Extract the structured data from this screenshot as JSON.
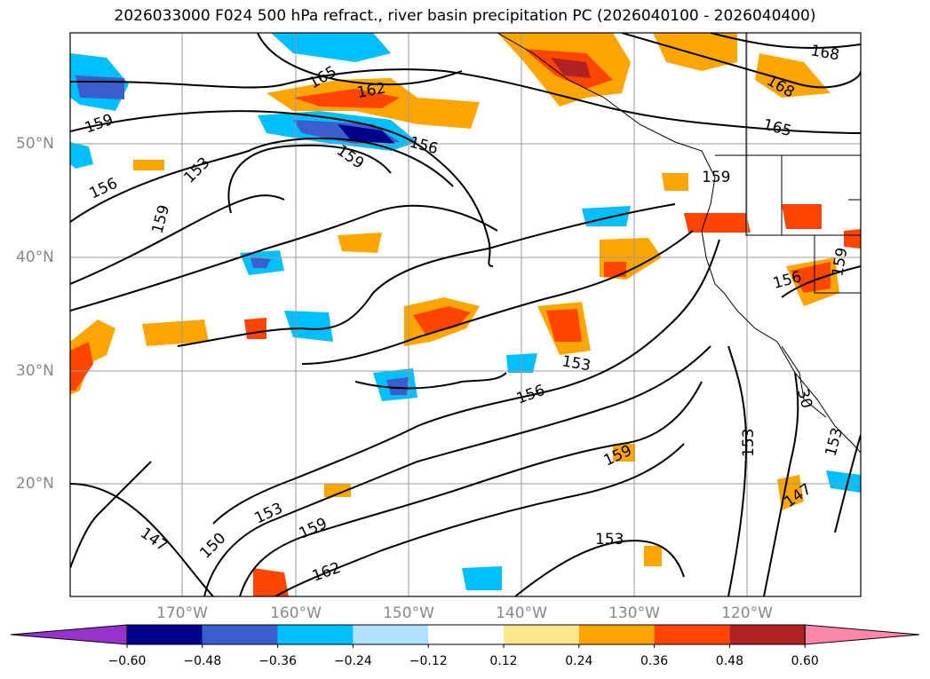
{
  "title": "2026033000 F024 500 hPa refract., river basin precipitation PC (2026040100 - 2026040400)",
  "lat_labels": [
    "50°N",
    "40°N",
    "30°N",
    "20°N"
  ],
  "lon_labels": [
    "170°W",
    "160°W",
    "150°W",
    "140°W",
    "130°W",
    "120°W"
  ],
  "colorbar": {
    "ticks": [
      "−0.60",
      "−0.48",
      "−0.36",
      "−0.24",
      "−0.12",
      "0.12",
      "0.24",
      "0.36",
      "0.48",
      "0.60"
    ],
    "colors": [
      "#9932CC",
      "#00008B",
      "#3A5FCD",
      "#00BFFF",
      "#B0E2FF",
      "#FFFFFF",
      "#FFE68C",
      "#FFA500",
      "#FF4500",
      "#B22222",
      "#FF88AA"
    ]
  },
  "contour_labels": [
    "165",
    "162",
    "168",
    "168",
    "165",
    "159",
    "156",
    "159",
    "153",
    "156",
    "159",
    "159",
    "153",
    "156",
    "159",
    "153",
    "150",
    "147",
    "153",
    "159",
    "162",
    "153",
    "153",
    "147",
    "156",
    "159",
    "30"
  ]
}
